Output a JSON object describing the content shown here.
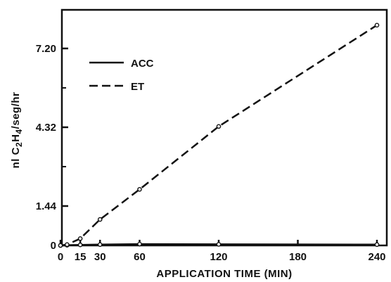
{
  "chart_data": {
    "type": "line",
    "xlabel": "APPLICATION TIME (MIN)",
    "ylabel": "nl C2H4/seg/hr",
    "ylabel_parts": [
      "nl C",
      "2",
      "H",
      "4",
      "/seg/hr"
    ],
    "xlim": [
      0,
      240
    ],
    "ylim": [
      0,
      8.2
    ],
    "x_ticks": [
      0,
      15,
      30,
      60,
      120,
      180,
      240
    ],
    "x_tick_labels": [
      "0",
      "15",
      "30",
      "60",
      "120",
      "180",
      "240"
    ],
    "y_ticks": [
      0,
      1.44,
      4.32,
      7.2
    ],
    "y_tick_labels": [
      "0",
      "1.44",
      "4.32",
      "7.20"
    ],
    "y_minor_ticks": [
      2.88,
      5.76
    ],
    "grid": false,
    "legend_position": "top-left",
    "series": [
      {
        "name": "ACC",
        "style": "solid",
        "color": "#111111",
        "x": [
          0,
          5,
          15,
          30,
          60,
          120,
          240
        ],
        "y": [
          0,
          0.01,
          0.02,
          0.03,
          0.05,
          0.04,
          0.03
        ]
      },
      {
        "name": "ET",
        "style": "dashed",
        "color": "#111111",
        "x": [
          0,
          5,
          15,
          30,
          60,
          120,
          240
        ],
        "y": [
          0,
          0.03,
          0.25,
          0.95,
          2.05,
          4.35,
          8.05
        ]
      }
    ]
  }
}
